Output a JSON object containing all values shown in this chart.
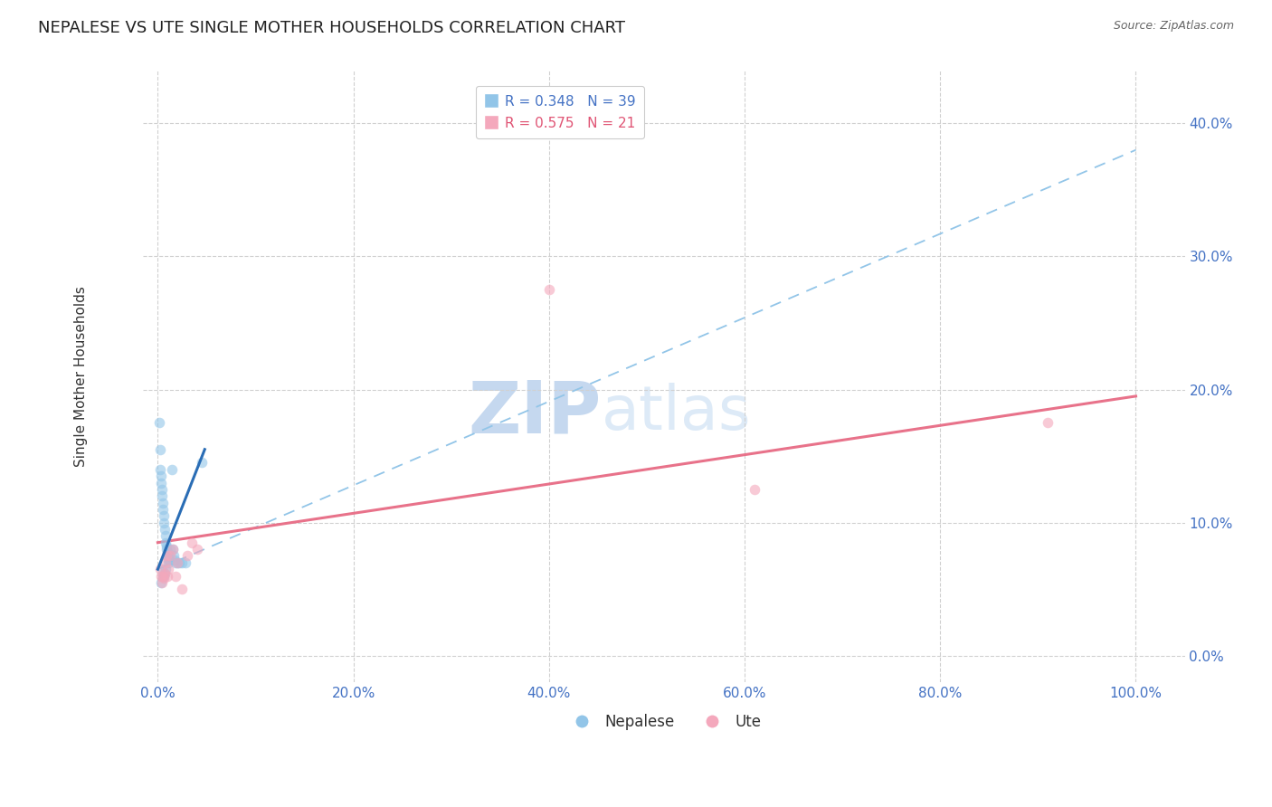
{
  "title": "NEPALESE VS UTE SINGLE MOTHER HOUSEHOLDS CORRELATION CHART",
  "source": "Source: ZipAtlas.com",
  "ylabel": "Single Mother Households",
  "xlabel_vals": [
    0,
    20,
    40,
    60,
    80,
    100
  ],
  "ylabel_vals": [
    0,
    10,
    20,
    30,
    40
  ],
  "xlim": [
    -1.5,
    105
  ],
  "ylim": [
    -2,
    44
  ],
  "legend_entries": [
    {
      "label": "R = 0.348   N = 39",
      "color": "#92c5e8"
    },
    {
      "label": "R = 0.575   N = 21",
      "color": "#f4a8bc"
    }
  ],
  "nepalese_scatter": {
    "x": [
      0.15,
      0.2,
      0.25,
      0.3,
      0.35,
      0.4,
      0.45,
      0.5,
      0.55,
      0.6,
      0.65,
      0.7,
      0.75,
      0.8,
      0.85,
      0.9,
      0.95,
      1.0,
      1.05,
      1.1,
      1.15,
      1.2,
      1.3,
      1.4,
      1.5,
      1.6,
      1.7,
      1.8,
      2.0,
      2.2,
      2.5,
      2.8,
      0.4,
      0.5,
      0.6,
      0.7,
      0.8,
      4.5,
      0.3
    ],
    "y": [
      17.5,
      15.5,
      14.0,
      13.5,
      13.0,
      12.5,
      12.0,
      11.5,
      11.0,
      10.5,
      10.0,
      9.5,
      9.0,
      8.5,
      8.2,
      8.0,
      7.8,
      7.5,
      7.2,
      7.0,
      7.2,
      7.5,
      8.0,
      14.0,
      8.0,
      7.5,
      7.2,
      7.0,
      7.0,
      7.0,
      7.0,
      7.0,
      6.5,
      6.0,
      6.0,
      6.2,
      6.5,
      14.5,
      5.5
    ],
    "color": "#92c5e8",
    "alpha": 0.6,
    "size": 70
  },
  "ute_scatter": {
    "x": [
      0.2,
      0.3,
      0.4,
      0.5,
      0.6,
      0.7,
      0.8,
      0.9,
      1.0,
      1.1,
      1.3,
      1.5,
      1.8,
      2.0,
      2.5,
      3.0,
      3.5,
      4.0,
      40.0,
      61.0,
      91.0
    ],
    "y": [
      6.5,
      6.0,
      5.5,
      6.0,
      5.8,
      6.2,
      7.0,
      7.5,
      6.0,
      6.5,
      7.5,
      8.0,
      6.0,
      7.0,
      5.0,
      7.5,
      8.5,
      8.0,
      27.5,
      12.5,
      17.5
    ],
    "color": "#f4a8bc",
    "alpha": 0.6,
    "size": 70
  },
  "nepalese_trend_solid": {
    "x": [
      0.0,
      4.8
    ],
    "y": [
      6.5,
      15.5
    ],
    "color": "#2a6db5",
    "linewidth": 2.2
  },
  "nepalese_trend_dashed": {
    "x": [
      0.0,
      100.0
    ],
    "y": [
      6.5,
      38.0
    ],
    "color": "#92c5e8",
    "linewidth": 1.3
  },
  "ute_trend": {
    "x": [
      0.0,
      100.0
    ],
    "y": [
      8.5,
      19.5
    ],
    "color": "#e8728a",
    "linewidth": 2.2
  },
  "background_color": "#ffffff",
  "grid_color": "#d0d0d0",
  "tick_color": "#4472c4",
  "title_color": "#222222",
  "watermark_color": "#ddeaf7",
  "watermark_fontsize": 58
}
